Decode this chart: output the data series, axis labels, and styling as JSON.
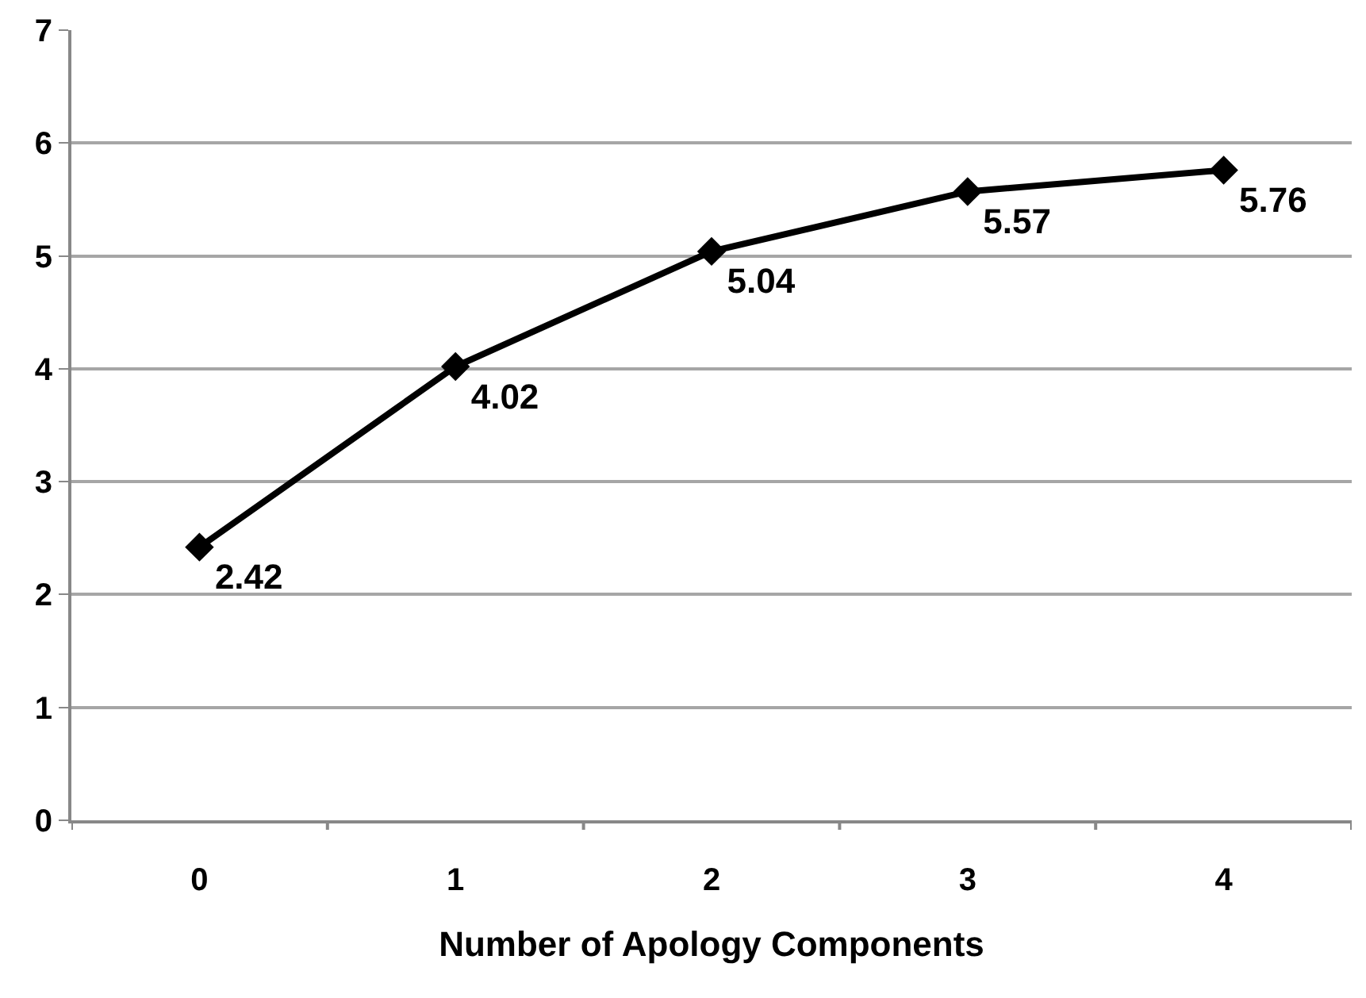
{
  "chart_data": {
    "type": "line",
    "xlabel": "Number of Apology Components",
    "categories": [
      "0",
      "1",
      "2",
      "3",
      "4"
    ],
    "series": [
      {
        "color": "#000000",
        "values": [
          2.42,
          4.02,
          5.04,
          5.57,
          5.76
        ]
      }
    ],
    "ylim": [
      0,
      7
    ],
    "yticks": [
      0,
      1,
      2,
      3,
      4,
      5,
      6,
      7
    ],
    "grid": "y",
    "marker": "diamond",
    "line_style": "solid",
    "data_labels": true
  }
}
